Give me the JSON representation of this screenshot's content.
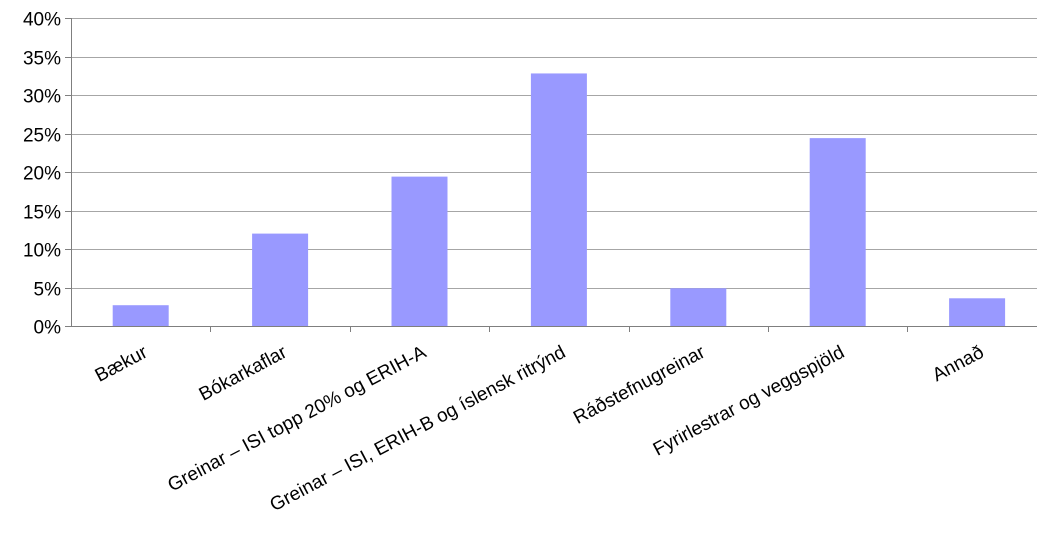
{
  "chart_data": {
    "type": "bar",
    "title": "",
    "xlabel": "",
    "ylabel": "",
    "categories": [
      "Bækur",
      "Bókarkaflar",
      "Greinar – ISI topp 20% og ERIH-A",
      "Greinar – ISI, ERIH-B og íslensk ritrýnd",
      "Ráðstefnugreinar",
      "Fyrirlestrar og veggspjöld",
      "Annað"
    ],
    "values": [
      2.7,
      12.0,
      19.4,
      32.8,
      4.9,
      24.4,
      3.6
    ],
    "value_unit": "%",
    "ylim": [
      0,
      40
    ],
    "yticks": [
      0,
      5,
      10,
      15,
      20,
      25,
      30,
      35,
      40
    ],
    "ytick_labels": [
      "0%",
      "5%",
      "10%",
      "15%",
      "20%",
      "25%",
      "30%",
      "35%",
      "40%"
    ],
    "grid": true,
    "legend": "none",
    "bar_color": "#9999ff",
    "grid_color": "#a6a6a6",
    "axis_color": "#7f7f7f",
    "category_label_rotation_deg": -28
  }
}
